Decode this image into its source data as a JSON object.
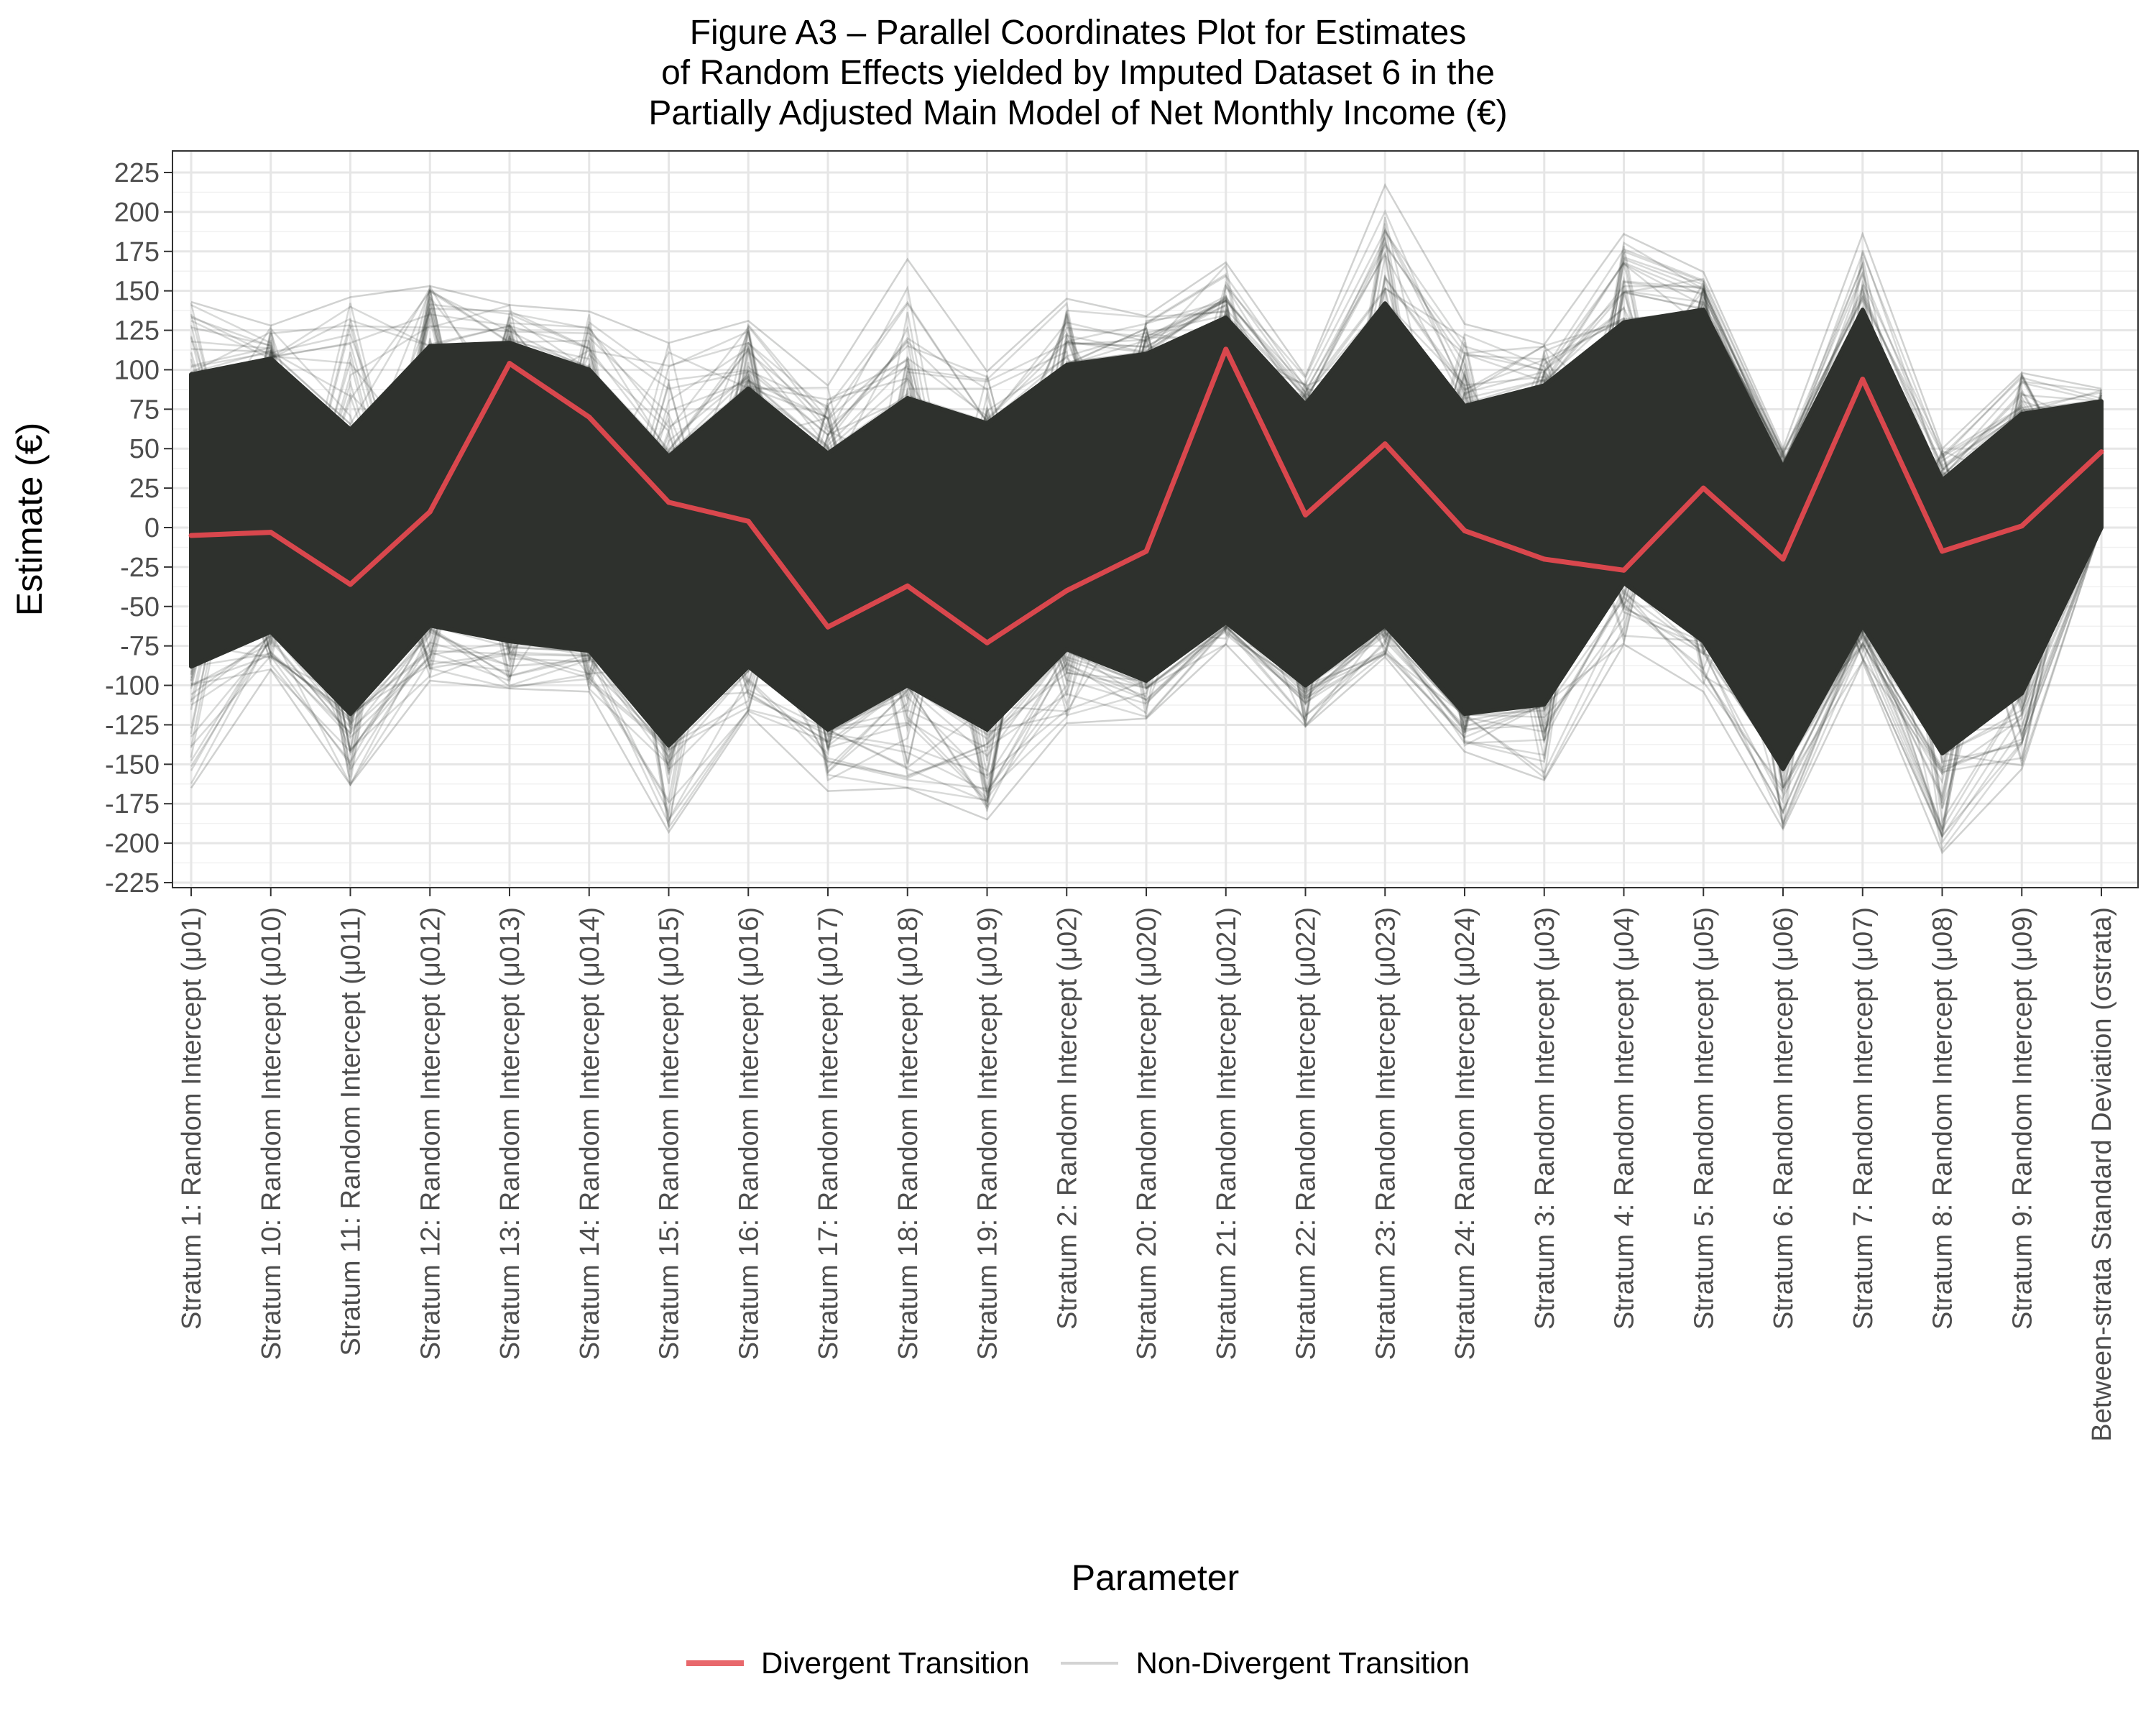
{
  "chart_data": {
    "type": "line",
    "title_lines": [
      "Figure A3 – Parallel Coordinates Plot for Estimates",
      "of Random Effects yielded by Imputed Dataset 6 in the",
      "Partially Adjusted Main Model of Net Monthly Income (€)"
    ],
    "xlabel": "Parameter",
    "ylabel": "Estimate (€)",
    "ylim": [
      -225,
      225
    ],
    "yticks": [
      225,
      200,
      175,
      150,
      125,
      100,
      75,
      50,
      25,
      0,
      -25,
      -50,
      -75,
      -100,
      -125,
      -150,
      -175,
      -200,
      -225
    ],
    "grid": true,
    "legend_position": "bottom",
    "categories": [
      "Stratum 1: Random Intercept (μ01)",
      "Stratum 10: Random Intercept (μ010)",
      "Stratum 11: Random Intercept (μ011)",
      "Stratum 12: Random Intercept (μ012)",
      "Stratum 13: Random Intercept (μ013)",
      "Stratum 14: Random Intercept (μ014)",
      "Stratum 15: Random Intercept (μ015)",
      "Stratum 16: Random Intercept (μ016)",
      "Stratum 17: Random Intercept (μ017)",
      "Stratum 18: Random Intercept (μ018)",
      "Stratum 19: Random Intercept (μ019)",
      "Stratum 2: Random Intercept (μ02)",
      "Stratum 20: Random Intercept (μ020)",
      "Stratum 21: Random Intercept (μ021)",
      "Stratum 22: Random Intercept (μ022)",
      "Stratum 23: Random Intercept (μ023)",
      "Stratum 24: Random Intercept (μ024)",
      "Stratum 3: Random Intercept (μ03)",
      "Stratum 4: Random Intercept (μ04)",
      "Stratum 5: Random Intercept (μ05)",
      "Stratum 6: Random Intercept (μ06)",
      "Stratum 7: Random Intercept (μ07)",
      "Stratum 8: Random Intercept (μ08)",
      "Stratum 9: Random Intercept (μ09)",
      "Between-strata Standard Deviation (σstrata)"
    ],
    "series": [
      {
        "name": "Divergent Transition",
        "color": "#d9474d",
        "values": [
          -5,
          -3,
          -36,
          10,
          104,
          70,
          16,
          4,
          -63,
          -37,
          -73,
          -40,
          -15,
          113,
          8,
          53,
          -2,
          -20,
          -27,
          25,
          -20,
          94,
          -15,
          1,
          48
        ]
      },
      {
        "name": "Non-Divergent Transition",
        "color": "#2e312d",
        "band_upper": [
          97,
          107,
          62,
          115,
          117,
          100,
          45,
          88,
          47,
          82,
          66,
          103,
          110,
          133,
          78,
          142,
          77,
          90,
          130,
          138,
          38,
          138,
          30,
          72,
          80
        ],
        "band_lower": [
          -88,
          -66,
          -118,
          -62,
          -72,
          -78,
          -138,
          -88,
          -128,
          -100,
          -128,
          -77,
          -97,
          -60,
          -100,
          -62,
          -118,
          -112,
          -35,
          -72,
          -153,
          -62,
          -143,
          -105,
          0
        ],
        "extreme_max": [
          143,
          128,
          146,
          153,
          141,
          137,
          117,
          131,
          90,
          170,
          99,
          145,
          134,
          168,
          96,
          217,
          129,
          116,
          186,
          162,
          50,
          186,
          50,
          98,
          88
        ],
        "extreme_min": [
          -165,
          -90,
          -163,
          -97,
          -102,
          -104,
          -193,
          -118,
          -167,
          -165,
          -185,
          -124,
          -121,
          -74,
          -126,
          -82,
          -142,
          -160,
          -74,
          -104,
          -191,
          -85,
          -206,
          -153,
          2
        ]
      }
    ]
  },
  "legend": {
    "divergent_label": "Divergent Transition",
    "nondivergent_label": "Non-Divergent Transition"
  }
}
